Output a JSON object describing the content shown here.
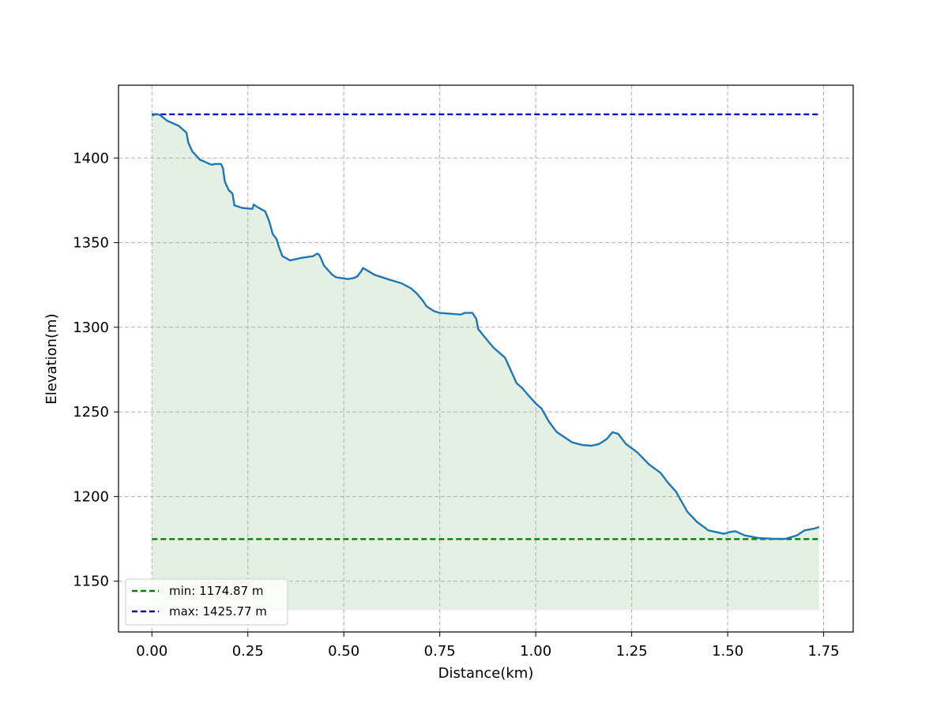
{
  "chart_data": {
    "type": "line",
    "title": "",
    "xlabel": "Distance(km)",
    "ylabel": "Elevation(m)",
    "xlim": [
      -0.087,
      1.827
    ],
    "ylim": [
      1120,
      1443
    ],
    "grid": true,
    "legend_location": "lower-left",
    "x_ticks": [
      0.0,
      0.25,
      0.5,
      0.75,
      1.0,
      1.25,
      1.5,
      1.75
    ],
    "x_tick_labels": [
      "0.00",
      "0.25",
      "0.50",
      "0.75",
      "1.00",
      "1.25",
      "1.50",
      "1.75"
    ],
    "y_ticks": [
      1150,
      1200,
      1250,
      1300,
      1350,
      1400
    ],
    "y_tick_labels": [
      "1150",
      "1200",
      "1250",
      "1300",
      "1350",
      "1400"
    ],
    "fill_baseline": 1133,
    "series": [
      {
        "type": "line",
        "color": "#1f77b4",
        "fill_color": "#e3f0e3",
        "x": [
          0.0,
          0.01,
          0.02,
          0.04,
          0.07,
          0.09,
          0.095,
          0.105,
          0.125,
          0.155,
          0.165,
          0.18,
          0.185,
          0.19,
          0.2,
          0.21,
          0.215,
          0.235,
          0.255,
          0.262,
          0.265,
          0.275,
          0.295,
          0.305,
          0.315,
          0.325,
          0.33,
          0.34,
          0.36,
          0.39,
          0.42,
          0.43,
          0.435,
          0.44,
          0.448,
          0.47,
          0.48,
          0.495,
          0.51,
          0.525,
          0.535,
          0.545,
          0.55,
          0.58,
          0.62,
          0.65,
          0.675,
          0.69,
          0.705,
          0.715,
          0.725,
          0.735,
          0.75,
          0.775,
          0.805,
          0.815,
          0.835,
          0.845,
          0.85,
          0.875,
          0.89,
          0.905,
          0.92,
          0.95,
          0.965,
          0.98,
          1.0,
          1.015,
          1.035,
          1.055,
          1.075,
          1.095,
          1.12,
          1.145,
          1.165,
          1.185,
          1.2,
          1.215,
          1.235,
          1.265,
          1.295,
          1.325,
          1.345,
          1.365,
          1.38,
          1.395,
          1.42,
          1.45,
          1.49,
          1.505,
          1.52,
          1.545,
          1.58,
          1.62,
          1.65,
          1.68,
          1.7,
          1.725,
          1.738
        ],
        "y": [
          1425,
          1426,
          1425.5,
          1422,
          1419,
          1415,
          1409,
          1404,
          1399,
          1396,
          1396.5,
          1396.5,
          1394,
          1386,
          1381,
          1379,
          1372,
          1370.5,
          1370,
          1370,
          1372.5,
          1371,
          1368.5,
          1363,
          1355,
          1352,
          1348,
          1342,
          1339.5,
          1341,
          1342,
          1343.5,
          1343,
          1341,
          1336.5,
          1331,
          1329.5,
          1329,
          1328.5,
          1329,
          1330,
          1333,
          1335,
          1331,
          1328,
          1326,
          1323,
          1320,
          1316,
          1312.5,
          1311,
          1309.5,
          1308.5,
          1308,
          1307.5,
          1308.5,
          1308.5,
          1305,
          1299,
          1292,
          1288,
          1285,
          1282,
          1267,
          1264,
          1260,
          1255,
          1252,
          1244,
          1238,
          1235,
          1232,
          1230.5,
          1230,
          1231,
          1234,
          1238,
          1237,
          1231,
          1226,
          1219,
          1214,
          1208,
          1203,
          1197,
          1191,
          1185,
          1180,
          1178,
          1179,
          1179.5,
          1177,
          1175.5,
          1175,
          1175,
          1177,
          1180,
          1181,
          1182
        ]
      },
      {
        "type": "hline",
        "name": "min: 1174.87 m",
        "value": 1174.87,
        "x_range": [
          0.0,
          1.738
        ],
        "color": "#008000",
        "style": "dashed"
      },
      {
        "type": "hline",
        "name": "max: 1425.77 m",
        "value": 1425.77,
        "x_range": [
          0.0,
          1.738
        ],
        "color": "#0000cc",
        "style": "dashed"
      }
    ]
  }
}
